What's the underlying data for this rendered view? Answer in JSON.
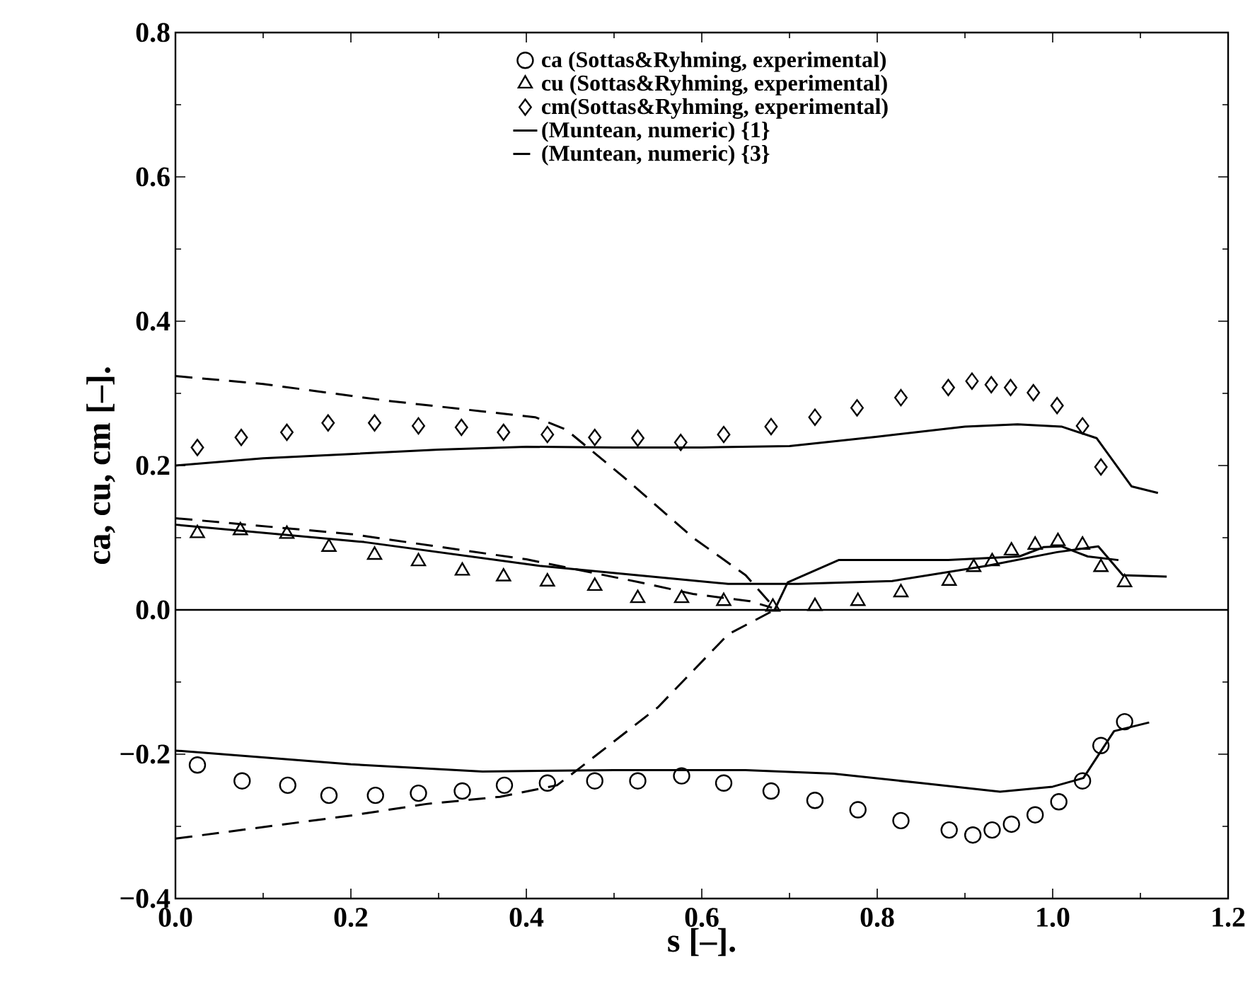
{
  "chart_data": {
    "type": "scatter",
    "xlabel": "s [–].",
    "ylabel": "ca, cu, cm [–].",
    "xlim": [
      0,
      1.2
    ],
    "ylim": [
      -0.4,
      0.8
    ],
    "xticks": [
      {
        "value": 0,
        "label": "0.0"
      },
      {
        "value": 0.2,
        "label": "0.2"
      },
      {
        "value": 0.4,
        "label": "0.4"
      },
      {
        "value": 0.6,
        "label": "0.6"
      },
      {
        "value": 0.8,
        "label": "0.8"
      },
      {
        "value": 1.0,
        "label": "1.0"
      },
      {
        "value": 1.2,
        "label": "1.2"
      }
    ],
    "yticks": [
      {
        "value": -0.4,
        "label": "−0.4"
      },
      {
        "value": -0.2,
        "label": "−0.2"
      },
      {
        "value": 0,
        "label": "0.0"
      },
      {
        "value": 0.2,
        "label": "0.2"
      },
      {
        "value": 0.4,
        "label": "0.4"
      },
      {
        "value": 0.6,
        "label": "0.6"
      },
      {
        "value": 0.8,
        "label": "0.8"
      }
    ],
    "grid": false,
    "legend": "top",
    "ref_lines": [
      {
        "axis": "y",
        "value": 0,
        "color": "#000000",
        "line_style": "solid"
      }
    ],
    "series": [
      {
        "name": "ca (Sottas&Ryhming, experimental)",
        "marker": "circle",
        "color": "#000000",
        "x": [
          0.025,
          0.076,
          0.128,
          0.175,
          0.228,
          0.277,
          0.327,
          0.375,
          0.424,
          0.478,
          0.527,
          0.577,
          0.625,
          0.679,
          0.729,
          0.778,
          0.827,
          0.882,
          0.909,
          0.931,
          0.953,
          0.98,
          1.007,
          1.034,
          1.055,
          1.082
        ],
        "values": [
          -0.215,
          -0.237,
          -0.243,
          -0.257,
          -0.257,
          -0.254,
          -0.251,
          -0.243,
          -0.24,
          -0.237,
          -0.237,
          -0.23,
          -0.24,
          -0.251,
          -0.264,
          -0.277,
          -0.292,
          -0.305,
          -0.312,
          -0.305,
          -0.297,
          -0.284,
          -0.266,
          -0.237,
          -0.188,
          -0.155
        ]
      },
      {
        "name": "cu (Sottas&Ryhming, experimental)",
        "marker": "triangle",
        "color": "#000000",
        "x": [
          0.025,
          0.074,
          0.127,
          0.175,
          0.227,
          0.277,
          0.327,
          0.374,
          0.424,
          0.478,
          0.527,
          0.577,
          0.625,
          0.681,
          0.729,
          0.778,
          0.827,
          0.882,
          0.91,
          0.931,
          0.953,
          0.98,
          1.006,
          1.034,
          1.055,
          1.082
        ],
        "values": [
          0.106,
          0.11,
          0.105,
          0.087,
          0.076,
          0.067,
          0.054,
          0.046,
          0.039,
          0.033,
          0.016,
          0.016,
          0.012,
          0.004,
          0.005,
          0.012,
          0.024,
          0.04,
          0.059,
          0.067,
          0.082,
          0.09,
          0.095,
          0.09,
          0.059,
          0.038
        ]
      },
      {
        "name": "cm(Sottas&Ryhming, experimental)",
        "marker": "diamond",
        "color": "#000000",
        "x": [
          0.025,
          0.075,
          0.127,
          0.174,
          0.227,
          0.277,
          0.326,
          0.374,
          0.424,
          0.478,
          0.527,
          0.576,
          0.625,
          0.679,
          0.729,
          0.777,
          0.827,
          0.881,
          0.908,
          0.93,
          0.952,
          0.978,
          1.005,
          1.034,
          1.055
        ],
        "values": [
          0.225,
          0.239,
          0.246,
          0.259,
          0.259,
          0.255,
          0.253,
          0.246,
          0.243,
          0.239,
          0.238,
          0.232,
          0.243,
          0.254,
          0.267,
          0.28,
          0.294,
          0.308,
          0.317,
          0.312,
          0.308,
          0.301,
          0.283,
          0.255,
          0.198
        ]
      },
      {
        "name": "(Muntean, numeric) {1}",
        "type": "line",
        "line_style": "solid",
        "color": "#000000",
        "x": [
          0,
          0.1,
          0.2,
          0.3,
          0.4,
          0.5,
          0.6,
          0.7,
          0.8,
          0.9,
          0.96,
          1.01,
          1.05,
          1.09,
          1.12
        ],
        "values": [
          0.2,
          0.21,
          0.216,
          0.222,
          0.226,
          0.225,
          0.225,
          0.227,
          0.24,
          0.254,
          0.257,
          0.254,
          0.238,
          0.171,
          0.162
        ]
      },
      {
        "name": "(Muntean, numeric) {3}",
        "type": "line",
        "line_style": "dashed",
        "color": "#000000",
        "x": [
          0,
          0.1,
          0.24,
          0.35,
          0.41,
          0.445,
          0.51,
          0.59,
          0.65,
          0.685
        ],
        "values": [
          0.324,
          0.313,
          0.29,
          0.275,
          0.267,
          0.25,
          0.185,
          0.1,
          0.048,
          0.0
        ]
      },
      {
        "type": "line",
        "line_style": "solid",
        "color": "#000000",
        "x": [
          0,
          0.2,
          0.35,
          0.5,
          0.65,
          0.75,
          0.85,
          0.94,
          1.0,
          1.035,
          1.07,
          1.11
        ],
        "values": [
          -0.195,
          -0.214,
          -0.224,
          -0.222,
          -0.222,
          -0.227,
          -0.24,
          -0.252,
          -0.245,
          -0.233,
          -0.168,
          -0.156
        ]
      },
      {
        "type": "line",
        "line_style": "solid",
        "color": "#000000",
        "x": [
          0,
          0.215,
          0.415,
          0.63,
          0.71,
          0.817,
          0.925,
          1.005,
          1.052,
          1.08,
          1.13
        ],
        "values": [
          0.118,
          0.094,
          0.061,
          0.036,
          0.036,
          0.04,
          0.061,
          0.08,
          0.088,
          0.048,
          0.046
        ]
      },
      {
        "type": "line",
        "line_style": "solid",
        "color": "#000000",
        "x": [
          0.683,
          0.698,
          0.756,
          0.881,
          0.962,
          0.99,
          1.01,
          1.04,
          1.075
        ],
        "values": [
          0.0,
          0.038,
          0.069,
          0.069,
          0.074,
          0.087,
          0.088,
          0.074,
          0.069
        ]
      },
      {
        "type": "line",
        "line_style": "dashed",
        "color": "#000000",
        "x": [
          0,
          0.2,
          0.286,
          0.37,
          0.435,
          0.46,
          0.55,
          0.63,
          0.683
        ],
        "values": [
          -0.317,
          -0.285,
          -0.269,
          -0.259,
          -0.243,
          -0.22,
          -0.135,
          -0.034,
          0.0
        ]
      },
      {
        "type": "line",
        "line_style": "dashed",
        "color": "#000000",
        "x": [
          0,
          0.2,
          0.4,
          0.53,
          0.59,
          0.655,
          0.68
        ],
        "values": [
          0.127,
          0.105,
          0.07,
          0.038,
          0.022,
          0.012,
          0.003
        ]
      }
    ]
  }
}
